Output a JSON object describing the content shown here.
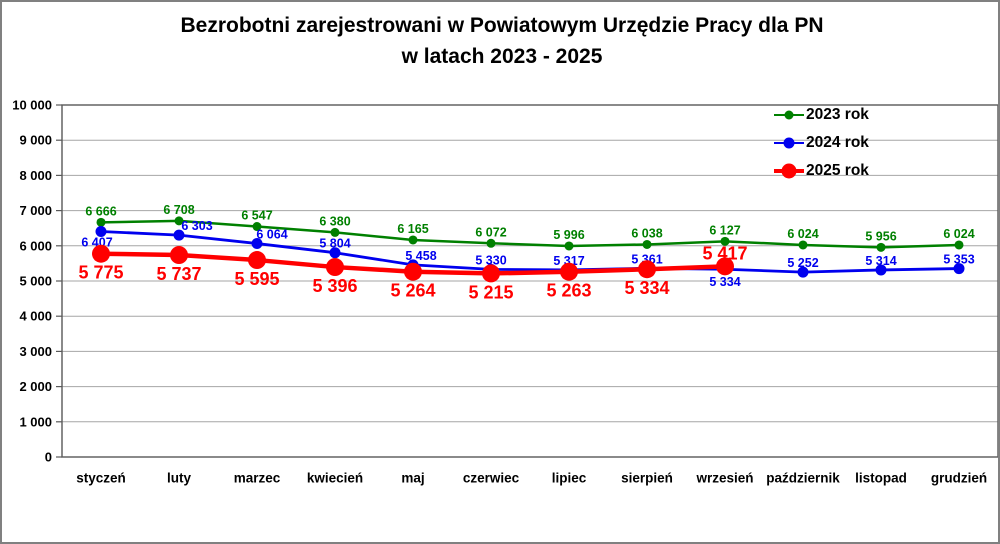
{
  "title": {
    "line1": "Bezrobotni zarejestrowani w Powiatowym Urzędzie Pracy dla PN",
    "line2": "w latach 2023 - 2025"
  },
  "chart_data": {
    "type": "line",
    "title": "Bezrobotni zarejestrowani w Powiatowym Urzędzie Pracy dla PN w latach 2023 - 2025",
    "categories": [
      "styczeń",
      "luty",
      "marzec",
      "kwiecień",
      "maj",
      "czerwiec",
      "lipiec",
      "sierpień",
      "wrzesień",
      "październik",
      "listopad",
      "grudzień"
    ],
    "series": [
      {
        "name": "2023 rok",
        "color": "#008000",
        "values": [
          6666,
          6708,
          6547,
          6380,
          6165,
          6072,
          5996,
          6038,
          6127,
          6024,
          5956,
          6024
        ],
        "marker_radius": 4.5,
        "line_width": 2.5,
        "label_size": 12.5,
        "label_dy": -11,
        "label_overrides": []
      },
      {
        "name": "2024 rok",
        "color": "#0000ee",
        "values": [
          6407,
          6303,
          6064,
          5804,
          5458,
          5330,
          5317,
          5361,
          5334,
          5252,
          5314,
          5353
        ],
        "marker_radius": 5.5,
        "line_width": 2.8,
        "label_size": 12.5,
        "label_dy": -9,
        "label_overrides": [
          {
            "i": 0,
            "dx": -4,
            "dy": 11
          },
          {
            "i": 1,
            "dx": 18
          },
          {
            "i": 2,
            "dx": 15
          },
          {
            "i": 4,
            "dx": 8
          },
          {
            "i": 8,
            "dy": 13
          }
        ]
      },
      {
        "name": "2025 rok",
        "color": "#ff0000",
        "values": [
          5775,
          5737,
          5595,
          5396,
          5264,
          5215,
          5263,
          5334,
          5417
        ],
        "marker_radius": 9,
        "line_width": 4.5,
        "label_size": 18,
        "label_dy": 19,
        "label_overrides": [
          {
            "i": 8,
            "dy": -13
          }
        ]
      }
    ],
    "ylim": [
      0,
      10000
    ],
    "ytick_step": 1000,
    "ytick_labels": [
      "0",
      "1 000",
      "2 000",
      "3 000",
      "4 000",
      "5 000",
      "6 000",
      "7 000",
      "8 000",
      "9 000",
      "10 000"
    ],
    "grid": "horizontal",
    "grid_color": "#a6a6a6",
    "axis_color": "#595959",
    "legend_position": "top-right",
    "number_format": "space-thousands",
    "data_labels": true
  }
}
